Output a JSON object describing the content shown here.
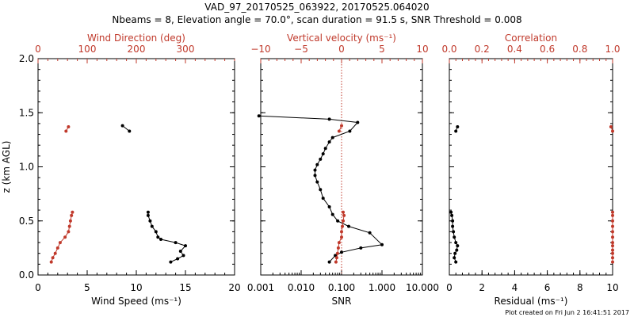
{
  "titles": {
    "line1": "VAD_97_20170525_063922, 20170525.064020",
    "line2": "Nbeams = 8, Elevation angle = 70.0°, scan duration = 91.5 s, SNR Threshold = 0.008"
  },
  "footer": "Plot created on Fri Jun  2 16:41:51 2017",
  "colors": {
    "axis": "#000000",
    "accent": "#c0392b"
  },
  "chart_data": [
    {
      "type": "line",
      "ylabel": "z (km AGL)",
      "ylim": [
        0,
        2.0
      ],
      "yticks": [
        "0.0",
        "0.5",
        "1.0",
        "1.5",
        "2.0"
      ],
      "bottom_axis": {
        "label": "Wind Speed (ms⁻¹)",
        "scale": "linear",
        "lim": [
          0,
          20
        ],
        "ticks": [
          0,
          5,
          10,
          15,
          20
        ],
        "tick_labels": [
          "0",
          "5",
          "10",
          "15",
          "20"
        ]
      },
      "top_axis": {
        "label": "Wind Direction (deg)",
        "scale": "linear",
        "lim": [
          0,
          400
        ],
        "ticks": [
          0,
          100,
          200,
          300
        ],
        "tick_labels": [
          "0",
          "100",
          "200",
          "300"
        ]
      },
      "series": [
        {
          "name": "Wind Speed",
          "axis": "bottom",
          "color": "#000000",
          "segments": [
            {
              "x": [
                8.6,
                9.3
              ],
              "y": [
                1.38,
                1.33
              ]
            },
            {
              "x": [
                11.2,
                11.2,
                11.4,
                11.6,
                12.0,
                12.2,
                12.5,
                14.0,
                15.0,
                14.5,
                14.8,
                14.2,
                13.5
              ],
              "y": [
                0.58,
                0.55,
                0.5,
                0.45,
                0.4,
                0.35,
                0.33,
                0.3,
                0.27,
                0.22,
                0.18,
                0.15,
                0.12
              ]
            }
          ]
        },
        {
          "name": "Wind Direction",
          "axis": "top",
          "color": "#c0392b",
          "segments": [
            {
              "x": [
                62,
                57
              ],
              "y": [
                1.37,
                1.33
              ]
            },
            {
              "x": [
                70,
                68,
                66,
                64,
                62,
                55,
                45,
                40,
                35,
                30,
                27
              ],
              "y": [
                0.58,
                0.55,
                0.5,
                0.45,
                0.4,
                0.35,
                0.3,
                0.25,
                0.2,
                0.16,
                0.12
              ]
            }
          ]
        }
      ]
    },
    {
      "type": "line",
      "ylim": [
        0,
        2.0
      ],
      "bottom_axis": {
        "label": "SNR",
        "scale": "log",
        "lim": [
          0.001,
          10
        ],
        "ticks": [
          0.001,
          0.01,
          0.1,
          1,
          10
        ],
        "tick_labels": [
          "0.001",
          "0.010",
          "0.100",
          "1.000",
          "10.000"
        ]
      },
      "top_axis": {
        "label": "Vertical velocity (ms⁻¹)",
        "scale": "linear",
        "lim": [
          -10,
          10
        ],
        "ticks": [
          -10,
          -5,
          0,
          5,
          10
        ],
        "tick_labels": [
          "−10",
          "−5",
          "0",
          "5",
          "10"
        ]
      },
      "reference_line": {
        "axis": "top",
        "value": 0,
        "style": "dotted"
      },
      "series": [
        {
          "name": "SNR",
          "axis": "bottom",
          "color": "#000000",
          "segments": [
            {
              "x": [
                0.0009,
                0.05,
                0.25,
                0.16,
                0.06,
                0.05,
                0.04,
                0.035,
                0.03,
                0.025,
                0.022,
                0.022,
                0.025,
                0.03,
                0.035,
                0.05,
                0.06,
                0.08,
                0.15,
                0.5,
                1.0,
                0.3,
                0.1,
                0.07,
                0.05
              ],
              "y": [
                1.47,
                1.44,
                1.41,
                1.33,
                1.27,
                1.23,
                1.17,
                1.12,
                1.07,
                1.02,
                0.97,
                0.92,
                0.86,
                0.79,
                0.71,
                0.63,
                0.56,
                0.5,
                0.45,
                0.39,
                0.28,
                0.25,
                0.21,
                0.18,
                0.12
              ]
            }
          ]
        },
        {
          "name": "Vertical velocity",
          "axis": "top",
          "color": "#c0392b",
          "segments": [
            {
              "x": [
                0.0,
                -0.3
              ],
              "y": [
                1.38,
                1.33
              ]
            },
            {
              "x": [
                0.2,
                0.3,
                0.2,
                0.1,
                0.0,
                0.0,
                -0.3,
                -0.4,
                -0.5,
                -0.6,
                -0.7
              ],
              "y": [
                0.58,
                0.55,
                0.5,
                0.45,
                0.4,
                0.35,
                0.3,
                0.25,
                0.2,
                0.16,
                0.12
              ]
            }
          ]
        }
      ]
    },
    {
      "type": "scatter",
      "ylim": [
        0,
        2.0
      ],
      "bottom_axis": {
        "label": "Residual (ms⁻¹)",
        "scale": "linear",
        "lim": [
          0,
          10
        ],
        "ticks": [
          0,
          2,
          4,
          6,
          8,
          10
        ],
        "tick_labels": [
          "0",
          "2",
          "4",
          "6",
          "8",
          "10"
        ]
      },
      "top_axis": {
        "label": "Correlation",
        "scale": "linear",
        "lim": [
          0,
          1
        ],
        "ticks": [
          0,
          0.2,
          0.4,
          0.6,
          0.8,
          1.0
        ],
        "tick_labels": [
          "0.0",
          "0.2",
          "0.4",
          "0.6",
          "0.8",
          "1.0"
        ]
      },
      "series": [
        {
          "name": "Residual",
          "axis": "bottom",
          "color": "#000000",
          "segments": [
            {
              "x": [
                0.5,
                0.4
              ],
              "y": [
                1.37,
                1.33
              ]
            },
            {
              "x": [
                0.1,
                0.15,
                0.2,
                0.2,
                0.25,
                0.3,
                0.4,
                0.5,
                0.45,
                0.35,
                0.3,
                0.4
              ],
              "y": [
                0.58,
                0.55,
                0.5,
                0.45,
                0.4,
                0.35,
                0.3,
                0.27,
                0.23,
                0.2,
                0.16,
                0.12
              ]
            }
          ]
        },
        {
          "name": "Correlation",
          "axis": "top",
          "color": "#c0392b",
          "segments": [
            {
              "x": [
                0.99,
                1.0
              ],
              "y": [
                1.37,
                1.33
              ]
            },
            {
              "x": [
                1.0,
                1.0,
                1.0,
                1.0,
                1.0,
                1.0,
                1.0,
                1.0,
                1.0,
                1.0,
                1.0,
                1.0
              ],
              "y": [
                0.58,
                0.55,
                0.5,
                0.45,
                0.4,
                0.35,
                0.3,
                0.27,
                0.23,
                0.2,
                0.16,
                0.12
              ]
            }
          ]
        }
      ]
    }
  ]
}
